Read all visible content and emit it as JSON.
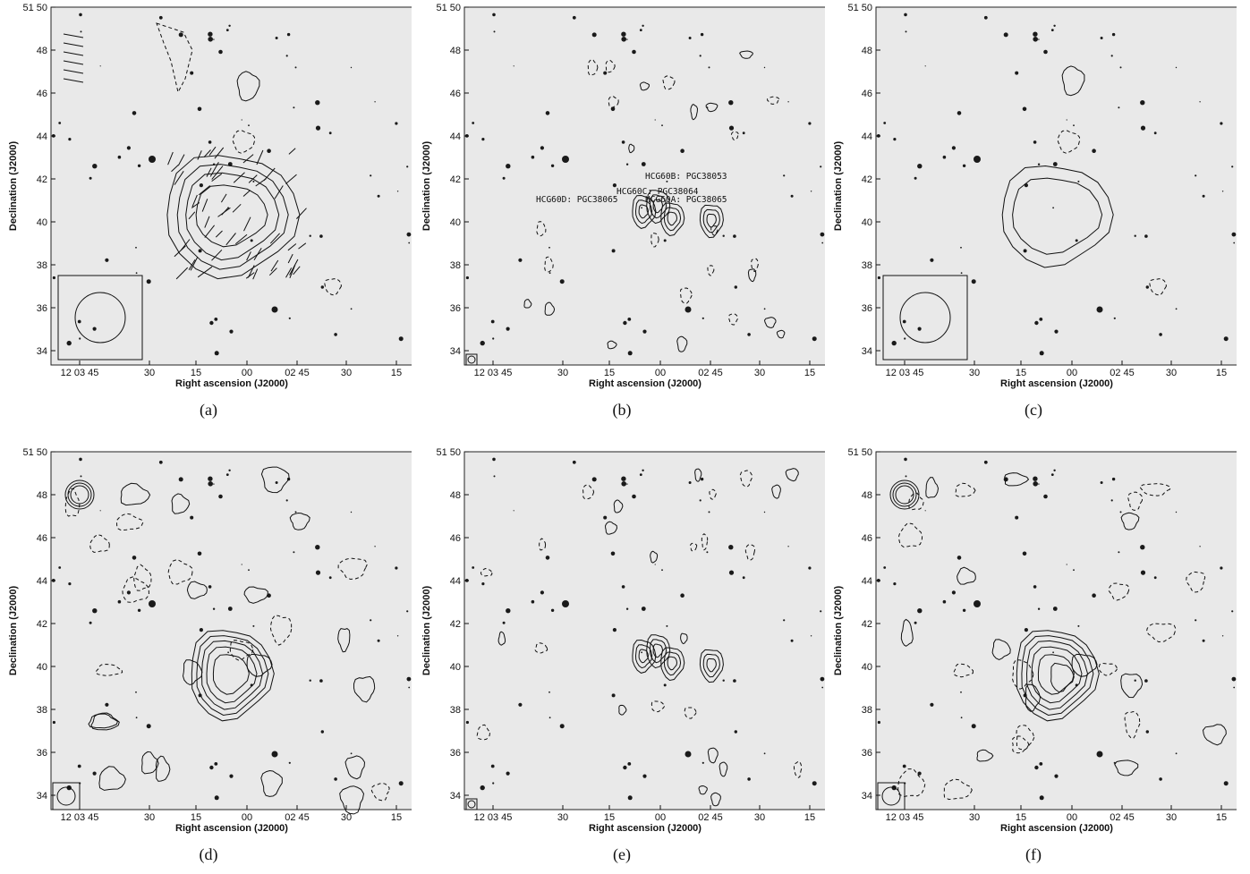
{
  "figure": {
    "common": {
      "ylabel": "Declination (J2000)",
      "xlabel": "Right ascension (J2000)",
      "y_ticks": [
        "51 50",
        "48",
        "46",
        "44",
        "42",
        "40",
        "38",
        "36",
        "34"
      ],
      "x_ticks": [
        "12 03 45",
        "30",
        "15",
        "00",
        "02 45",
        "30",
        "15"
      ]
    },
    "panels": [
      {
        "caption": "(a)",
        "galaxy_labels": []
      },
      {
        "caption": "(b)",
        "galaxy_labels": [
          "HCG60B: PGC38053",
          "HCG60C: PGC38064",
          "HCG60D: PGC38065",
          "HCG60A: PGC38065"
        ]
      },
      {
        "caption": "(c)",
        "galaxy_labels": []
      },
      {
        "caption": "(d)",
        "galaxy_labels": []
      },
      {
        "caption": "(e)",
        "galaxy_labels": []
      },
      {
        "caption": "(f)",
        "galaxy_labels": []
      }
    ]
  }
}
